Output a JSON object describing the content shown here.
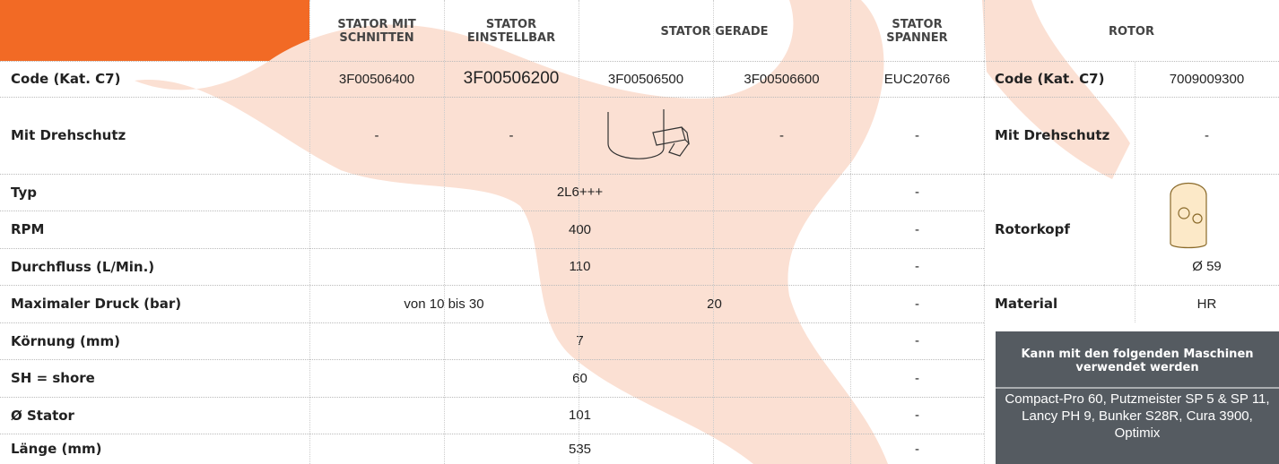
{
  "left_table": {
    "headers": [
      "STATOR MIT SCHNITTEN",
      "STATOR EINSTELLBAR",
      "STATOR GERADE",
      "STATOR SPANNER"
    ],
    "rows": [
      {
        "label": "Code (Kat. C7)",
        "cells": [
          "3F00506400",
          "3F00506200",
          "3F00506500",
          "3F00506600",
          "EUC20766"
        ]
      },
      {
        "label": "Mit Drehschutz",
        "cells": [
          "-",
          "-",
          "-",
          "-"
        ]
      },
      {
        "label": "Typ",
        "cells": [
          "2L6+++",
          "-"
        ]
      },
      {
        "label": "RPM",
        "cells": [
          "400",
          "-"
        ]
      },
      {
        "label": "Durchfluss (L/Min.)",
        "cells": [
          "110",
          "-"
        ]
      },
      {
        "label": "Maximaler Druck (bar)",
        "cells": [
          "von 10 bis 30",
          "20",
          "-"
        ]
      },
      {
        "label": "Körnung (mm)",
        "cells": [
          "7",
          "-"
        ]
      },
      {
        "label": "SH = shore",
        "cells": [
          "60",
          "-"
        ]
      },
      {
        "label": "Ø Stator",
        "cells": [
          "101",
          "-"
        ]
      },
      {
        "label": "Länge (mm)",
        "cells": [
          "535",
          "-"
        ]
      }
    ]
  },
  "right_table": {
    "header": "ROTOR",
    "rows": [
      {
        "label": "Code (Kat. C7)",
        "value": "7009009300"
      },
      {
        "label": "Mit Drehschutz",
        "value": "-"
      },
      {
        "label": "Rotorkopf",
        "value": "Ø 59"
      },
      {
        "label": "Material",
        "value": "HR"
      }
    ]
  },
  "compat": {
    "title": "Kann mit den folgenden Maschinen verwendet werden",
    "text": "Compact-Pro 60, Putzmeister SP 5 & SP 11, Lancy PH 9, Bunker S28R, Cura 3900, Optimix"
  }
}
